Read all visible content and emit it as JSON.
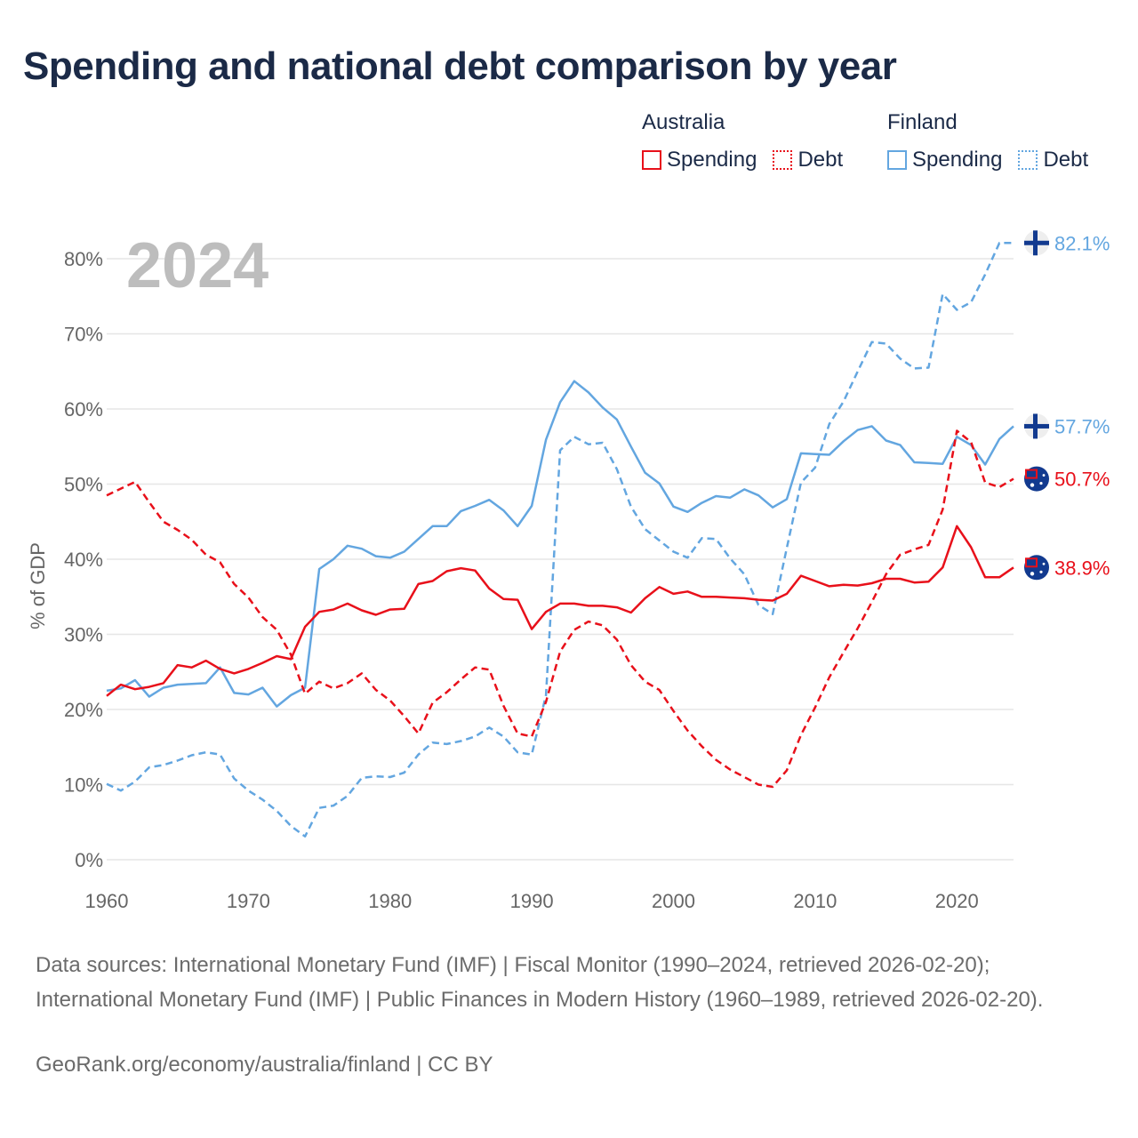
{
  "title": "Spending and national debt comparison by year",
  "legend": {
    "australia": {
      "title": "Australia",
      "spending": "Spending",
      "debt": "Debt"
    },
    "finland": {
      "title": "Finland",
      "spending": "Spending",
      "debt": "Debt"
    }
  },
  "year_watermark": "2024",
  "sources": "Data sources: International Monetary Fund (IMF) | Fiscal Monitor (1990–2024, retrieved 2026-02-20); International Monetary Fund (IMF) | Public Finances in Modern History (1960–1989, retrieved 2026-02-20).",
  "credit": "GeoRank.org/economy/australia/finland | CC BY",
  "colors": {
    "australia": "#e8101a",
    "finland": "#63a6e0",
    "grid": "#e6e6e6",
    "axis_text": "#666666"
  },
  "chart_data": {
    "type": "line",
    "title": "Spending and national debt comparison by year",
    "xlabel": "",
    "ylabel": "% of GDP",
    "xlim": [
      1960,
      2024
    ],
    "ylim": [
      0,
      80
    ],
    "x_ticks": [
      1960,
      1970,
      1980,
      1990,
      2000,
      2010,
      2020
    ],
    "y_ticks": [
      0,
      10,
      20,
      30,
      40,
      50,
      60,
      70,
      80
    ],
    "y_tick_labels": [
      "0%",
      "10%",
      "20%",
      "30%",
      "40%",
      "50%",
      "60%",
      "70%",
      "80%"
    ],
    "grid": true,
    "legend_position": "top-right",
    "x": [
      1960,
      1961,
      1962,
      1963,
      1964,
      1965,
      1966,
      1967,
      1968,
      1969,
      1970,
      1971,
      1972,
      1973,
      1974,
      1975,
      1976,
      1977,
      1978,
      1979,
      1980,
      1981,
      1982,
      1983,
      1984,
      1985,
      1986,
      1987,
      1988,
      1989,
      1990,
      1991,
      1992,
      1993,
      1994,
      1995,
      1996,
      1997,
      1998,
      1999,
      2000,
      2001,
      2002,
      2003,
      2004,
      2005,
      2006,
      2007,
      2008,
      2009,
      2010,
      2011,
      2012,
      2013,
      2014,
      2015,
      2016,
      2017,
      2018,
      2019,
      2020,
      2021,
      2022,
      2023,
      2024
    ],
    "series": [
      {
        "name": "Finland Debt",
        "country": "Finland",
        "measure": "Debt",
        "dash": true,
        "end_label": "82.1%",
        "values": [
          10.1,
          9.2,
          10.4,
          12.3,
          12.6,
          13.2,
          13.9,
          14.3,
          14.0,
          10.8,
          9.2,
          8.0,
          6.5,
          4.5,
          3.1,
          6.9,
          7.2,
          8.5,
          10.9,
          11.1,
          11.0,
          11.6,
          14.0,
          15.6,
          15.4,
          15.8,
          16.4,
          17.6,
          16.4,
          14.3,
          14.0,
          21.9,
          54.5,
          56.3,
          55.3,
          55.5,
          52.0,
          47.0,
          44.0,
          42.5,
          41.0,
          40.2,
          42.8,
          42.7,
          40.1,
          38.0,
          33.9,
          32.7,
          41.5,
          50.2,
          52.2,
          58.0,
          61.0,
          65.0,
          68.9,
          68.7,
          66.7,
          65.4,
          65.5,
          75.3,
          73.2,
          74.2,
          77.9,
          82.1,
          82.1
        ]
      },
      {
        "name": "Finland Spending",
        "country": "Finland",
        "measure": "Spending",
        "dash": false,
        "end_label": "57.7%",
        "values": [
          22.5,
          22.8,
          23.9,
          21.7,
          22.9,
          23.3,
          23.4,
          23.5,
          25.6,
          22.2,
          22.0,
          22.9,
          20.4,
          21.9,
          22.9,
          38.7,
          40.0,
          41.8,
          41.4,
          40.4,
          40.2,
          41.0,
          42.7,
          44.4,
          44.4,
          46.4,
          47.1,
          47.9,
          46.5,
          44.4,
          47.1,
          55.9,
          60.9,
          63.7,
          62.2,
          60.2,
          58.6,
          55.0,
          51.5,
          50.1,
          47.0,
          46.3,
          47.5,
          48.4,
          48.2,
          49.3,
          48.5,
          46.9,
          48.0,
          54.1,
          54.0,
          53.9,
          55.7,
          57.2,
          57.7,
          55.8,
          55.2,
          52.9,
          52.8,
          52.7,
          56.3,
          55.2,
          52.6,
          56.0,
          57.7
        ]
      },
      {
        "name": "Australia Debt",
        "country": "Australia",
        "measure": "Debt",
        "dash": true,
        "end_label": "50.7%",
        "values": [
          48.5,
          49.4,
          50.3,
          47.6,
          45.0,
          43.9,
          42.6,
          40.6,
          39.6,
          36.7,
          34.9,
          32.3,
          30.6,
          27.3,
          22.1,
          23.7,
          22.8,
          23.5,
          24.8,
          22.6,
          21.2,
          19.1,
          16.8,
          20.9,
          22.3,
          24.0,
          25.6,
          25.3,
          20.5,
          16.8,
          16.4,
          21.0,
          27.7,
          30.6,
          31.7,
          31.2,
          29.3,
          25.9,
          23.7,
          22.6,
          19.8,
          17.2,
          15.1,
          13.3,
          12.0,
          11.0,
          10.0,
          9.7,
          11.9,
          16.6,
          20.3,
          24.3,
          27.6,
          30.8,
          34.3,
          38.0,
          40.6,
          41.3,
          41.9,
          46.6,
          57.1,
          55.6,
          50.2,
          49.6,
          50.7
        ]
      },
      {
        "name": "Australia Spending",
        "country": "Australia",
        "measure": "Spending",
        "dash": false,
        "end_label": "38.9%",
        "values": [
          21.8,
          23.3,
          22.7,
          23.0,
          23.5,
          25.9,
          25.6,
          26.5,
          25.4,
          24.8,
          25.4,
          26.2,
          27.1,
          26.7,
          31.0,
          33.0,
          33.3,
          34.1,
          33.2,
          32.6,
          33.3,
          33.4,
          36.7,
          37.1,
          38.4,
          38.8,
          38.5,
          36.1,
          34.7,
          34.6,
          30.7,
          33.0,
          34.1,
          34.1,
          33.8,
          33.8,
          33.6,
          32.9,
          34.8,
          36.3,
          35.4,
          35.7,
          35.0,
          35.0,
          34.9,
          34.8,
          34.6,
          34.5,
          35.4,
          37.8,
          37.1,
          36.4,
          36.6,
          36.5,
          36.8,
          37.4,
          37.4,
          36.9,
          37.0,
          38.9,
          44.4,
          41.6,
          37.6,
          37.6,
          38.9
        ]
      }
    ]
  }
}
